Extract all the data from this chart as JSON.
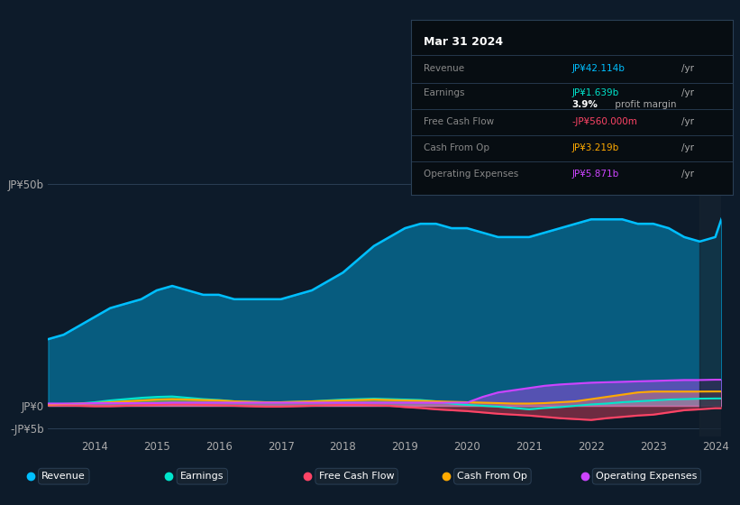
{
  "background_color": "#0d1b2a",
  "plot_bg_color": "#0d1b2a",
  "ylabel_top": "JP¥50b",
  "ylabel_zero": "JP¥0",
  "ylabel_neg": "-JP¥5b",
  "years": [
    2013.25,
    2013.5,
    2013.75,
    2014.0,
    2014.25,
    2014.5,
    2014.75,
    2015.0,
    2015.25,
    2015.5,
    2015.75,
    2016.0,
    2016.25,
    2016.5,
    2016.75,
    2017.0,
    2017.25,
    2017.5,
    2017.75,
    2018.0,
    2018.25,
    2018.5,
    2018.75,
    2019.0,
    2019.25,
    2019.5,
    2019.75,
    2020.0,
    2020.25,
    2020.5,
    2020.75,
    2021.0,
    2021.25,
    2021.5,
    2021.75,
    2022.0,
    2022.25,
    2022.5,
    2022.75,
    2023.0,
    2023.25,
    2023.5,
    2023.75,
    2024.0,
    2024.1
  ],
  "revenue": [
    15,
    16,
    18,
    20,
    22,
    23,
    24,
    26,
    27,
    26,
    25,
    25,
    24,
    24,
    24,
    24,
    25,
    26,
    28,
    30,
    33,
    36,
    38,
    40,
    41,
    41,
    40,
    40,
    39,
    38,
    38,
    38,
    39,
    40,
    41,
    42,
    42,
    42,
    41,
    41,
    40,
    38,
    37,
    38,
    42.114
  ],
  "earnings": [
    0.2,
    0.3,
    0.5,
    0.8,
    1.2,
    1.5,
    1.8,
    2.0,
    2.1,
    1.8,
    1.5,
    1.3,
    1.0,
    0.9,
    0.8,
    0.8,
    0.9,
    1.0,
    1.2,
    1.4,
    1.5,
    1.6,
    1.5,
    1.4,
    1.3,
    1.0,
    0.5,
    0.2,
    0.0,
    -0.2,
    -0.5,
    -0.8,
    -0.5,
    -0.3,
    0.0,
    0.3,
    0.5,
    0.8,
    1.0,
    1.2,
    1.4,
    1.5,
    1.6,
    1.639,
    1.639
  ],
  "free_cash_flow": [
    0.1,
    0.1,
    0.0,
    -0.1,
    -0.1,
    0.0,
    0.1,
    0.2,
    0.3,
    0.3,
    0.2,
    0.1,
    0.0,
    -0.1,
    -0.2,
    -0.2,
    -0.1,
    0.0,
    0.1,
    0.2,
    0.2,
    0.1,
    0.0,
    -0.3,
    -0.5,
    -0.8,
    -1.0,
    -1.2,
    -1.5,
    -1.8,
    -2.0,
    -2.2,
    -2.5,
    -2.8,
    -3.0,
    -3.2,
    -2.8,
    -2.5,
    -2.2,
    -2.0,
    -1.5,
    -1.0,
    -0.8,
    -0.56,
    -0.56
  ],
  "cash_from_op": [
    0.3,
    0.4,
    0.5,
    0.6,
    0.8,
    1.0,
    1.2,
    1.4,
    1.5,
    1.4,
    1.3,
    1.2,
    1.0,
    0.9,
    0.8,
    0.8,
    0.9,
    1.0,
    1.1,
    1.2,
    1.3,
    1.4,
    1.3,
    1.2,
    1.1,
    1.0,
    0.9,
    0.8,
    0.7,
    0.6,
    0.5,
    0.5,
    0.6,
    0.8,
    1.0,
    1.5,
    2.0,
    2.5,
    3.0,
    3.2,
    3.2,
    3.2,
    3.2,
    3.219,
    3.219
  ],
  "operating_expenses": [
    0.5,
    0.5,
    0.5,
    0.6,
    0.6,
    0.6,
    0.6,
    0.6,
    0.7,
    0.7,
    0.7,
    0.7,
    0.7,
    0.7,
    0.7,
    0.7,
    0.7,
    0.7,
    0.7,
    0.7,
    0.7,
    0.7,
    0.7,
    0.7,
    0.7,
    0.7,
    0.7,
    0.7,
    2.0,
    3.0,
    3.5,
    4.0,
    4.5,
    4.8,
    5.0,
    5.2,
    5.3,
    5.4,
    5.5,
    5.6,
    5.7,
    5.8,
    5.8,
    5.871,
    5.871
  ],
  "revenue_color": "#00bfff",
  "earnings_color": "#00e5cc",
  "fcf_color": "#ff4466",
  "cashop_color": "#ffaa00",
  "opex_color": "#cc44ff",
  "legend_items": [
    "Revenue",
    "Earnings",
    "Free Cash Flow",
    "Cash From Op",
    "Operating Expenses"
  ],
  "x_ticks": [
    2014,
    2015,
    2016,
    2017,
    2018,
    2019,
    2020,
    2021,
    2022,
    2023,
    2024
  ],
  "ylim": [
    -7,
    55
  ],
  "info_box": {
    "date": "Mar 31 2024",
    "revenue_val": "JP¥42.114b",
    "earnings_val": "JP¥1.639b",
    "profit_margin": "3.9%",
    "fcf_val": "-JP¥560.000m",
    "cashop_val": "JP¥3.219b",
    "opex_val": "JP¥5.871b"
  }
}
